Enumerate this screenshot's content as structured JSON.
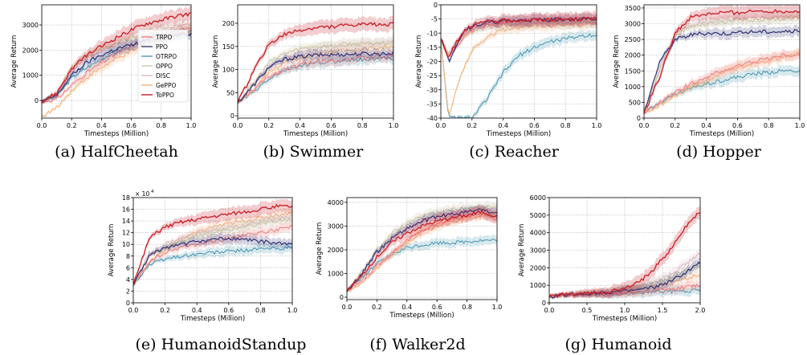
{
  "figure": {
    "captions": [
      "(a) HalfCheetah",
      "(b) Swimmer",
      "(c) Reacher",
      "(d) Hopper",
      "(e) HumanoidStandup",
      "(f) Walker2d",
      "(g) Humanoid"
    ]
  },
  "legend": {
    "entries": [
      {
        "name": "TRPO",
        "color": "#f08080"
      },
      {
        "name": "PPO",
        "color": "#3b3b7a"
      },
      {
        "name": "OTRPO",
        "color": "#4f9ab3"
      },
      {
        "name": "OPPO",
        "color": "#c9c9a6"
      },
      {
        "name": "DISC",
        "color": "#d9b8c4"
      },
      {
        "name": "GePPO",
        "color": "#f2b27c"
      },
      {
        "name": "ToPPO",
        "color": "#c81d25"
      }
    ]
  },
  "chart_data": [
    {
      "type": "line",
      "title": "HalfCheetah",
      "xlabel": "Timesteps (Million)",
      "ylabel": "Average Return",
      "xlim": [
        0,
        1
      ],
      "ylim": [
        -700,
        3800
      ],
      "xticks": [
        "0.0",
        "0.2",
        "0.4",
        "0.6",
        "0.8",
        "1.0"
      ],
      "yticks": [
        0,
        1000,
        2000,
        3000
      ],
      "x": [
        0,
        0.1,
        0.2,
        0.3,
        0.4,
        0.5,
        0.6,
        0.7,
        0.8,
        0.9,
        1.0
      ],
      "series": [
        {
          "name": "TRPO",
          "values": [
            -50,
            50,
            600,
            1100,
            1500,
            1850,
            2150,
            2400,
            2600,
            2750,
            2850
          ]
        },
        {
          "name": "PPO",
          "values": [
            -50,
            200,
            1000,
            1500,
            1800,
            2050,
            2200,
            2400,
            2500,
            2600,
            2650
          ]
        },
        {
          "name": "OTRPO",
          "values": [
            -50,
            150,
            900,
            1300,
            1650,
            1950,
            2150,
            2300,
            2450,
            2600,
            2700
          ]
        },
        {
          "name": "OPPO",
          "values": [
            -50,
            300,
            1300,
            1800,
            2100,
            2300,
            2450,
            2600,
            2750,
            2850,
            2950
          ]
        },
        {
          "name": "DISC",
          "values": [
            -50,
            250,
            1200,
            1700,
            2000,
            2250,
            2450,
            2650,
            2800,
            2950,
            3050
          ]
        },
        {
          "name": "GePPO",
          "values": [
            -650,
            -300,
            400,
            900,
            1300,
            1650,
            1950,
            2200,
            2400,
            2600,
            2750
          ]
        },
        {
          "name": "ToPPO",
          "values": [
            -50,
            300,
            1250,
            1800,
            2150,
            2500,
            2800,
            3050,
            3200,
            3350,
            3450
          ]
        }
      ]
    },
    {
      "type": "line",
      "title": "Swimmer",
      "xlabel": "Timesteps (Million)",
      "ylabel": "Average Return",
      "xlim": [
        0,
        1
      ],
      "ylim": [
        -5,
        240
      ],
      "xticks": [
        "0.0",
        "0.2",
        "0.4",
        "0.6",
        "0.8",
        "1.0"
      ],
      "yticks": [
        0,
        50,
        100,
        150,
        200
      ],
      "x": [
        0,
        0.1,
        0.2,
        0.3,
        0.4,
        0.5,
        0.6,
        0.7,
        0.8,
        0.9,
        1.0
      ],
      "series": [
        {
          "name": "TRPO",
          "values": [
            28,
            55,
            85,
            100,
            110,
            117,
            120,
            123,
            125,
            127,
            128
          ]
        },
        {
          "name": "PPO",
          "values": [
            28,
            65,
            105,
            122,
            128,
            131,
            132,
            133,
            134,
            134,
            135
          ]
        },
        {
          "name": "OTRPO",
          "values": [
            28,
            50,
            80,
            98,
            108,
            113,
            117,
            120,
            122,
            124,
            125
          ]
        },
        {
          "name": "OPPO",
          "values": [
            28,
            70,
            115,
            135,
            145,
            150,
            152,
            155,
            156,
            157,
            158
          ]
        },
        {
          "name": "DISC",
          "values": [
            28,
            65,
            105,
            125,
            138,
            145,
            150,
            153,
            155,
            157,
            160
          ]
        },
        {
          "name": "GePPO",
          "values": [
            28,
            55,
            95,
            115,
            125,
            133,
            138,
            142,
            145,
            147,
            150
          ]
        },
        {
          "name": "ToPPO",
          "values": [
            28,
            95,
            155,
            175,
            185,
            190,
            193,
            195,
            197,
            198,
            198
          ]
        }
      ]
    },
    {
      "type": "line",
      "title": "Reacher",
      "xlabel": "Timesteps (Million)",
      "ylabel": "Average Return",
      "xlim": [
        0,
        1
      ],
      "ylim": [
        -40,
        0
      ],
      "xticks": [
        "0.0",
        "0.2",
        "0.4",
        "0.6",
        "0.8",
        "1.0"
      ],
      "yticks": [
        -40,
        -35,
        -30,
        -25,
        -20,
        -15,
        -10,
        -5,
        0
      ],
      "x": [
        0,
        0.05,
        0.1,
        0.15,
        0.2,
        0.3,
        0.4,
        0.5,
        0.6,
        0.7,
        0.8,
        0.9,
        1.0
      ],
      "series": [
        {
          "name": "TRPO",
          "values": [
            -12,
            -18,
            -15,
            -11,
            -9,
            -7,
            -6.3,
            -5.8,
            -5.5,
            -5.3,
            -5.2,
            -5.1,
            -5.0
          ]
        },
        {
          "name": "PPO",
          "values": [
            -12,
            -20,
            -14,
            -9,
            -7.5,
            -6.3,
            -5.8,
            -5.5,
            -5.3,
            -5.2,
            -5.1,
            -5.0,
            -5.0
          ]
        },
        {
          "name": "OTRPO",
          "values": [
            -12,
            -40,
            -40,
            -40,
            -40,
            -33,
            -24,
            -18,
            -15,
            -13,
            -12,
            -11,
            -10.5
          ]
        },
        {
          "name": "OPPO",
          "values": [
            -12,
            -18,
            -14,
            -11,
            -9.5,
            -8,
            -7.3,
            -7,
            -6.8,
            -6.6,
            -6.5,
            -6.4,
            -6.3
          ]
        },
        {
          "name": "DISC",
          "values": [
            -12,
            -17,
            -13,
            -10,
            -8.5,
            -7.5,
            -7,
            -6.8,
            -6.6,
            -6.5,
            -6.4,
            -6.3,
            -6.2
          ]
        },
        {
          "name": "GePPO",
          "values": [
            -12,
            -40,
            -30,
            -22,
            -16,
            -11,
            -9,
            -8,
            -7.5,
            -7.2,
            -7,
            -6.8,
            -6.7
          ]
        },
        {
          "name": "ToPPO",
          "values": [
            -12,
            -19,
            -13,
            -9,
            -7,
            -6,
            -5.6,
            -5.4,
            -5.3,
            -5.2,
            -5.1,
            -5.0,
            -5.0
          ]
        }
      ]
    },
    {
      "type": "line",
      "title": "Hopper",
      "xlabel": "Timesteps (Million)",
      "ylabel": "Average Return",
      "xlim": [
        0,
        1
      ],
      "ylim": [
        0,
        3600
      ],
      "xticks": [
        "0.0",
        "0.2",
        "0.4",
        "0.6",
        "0.8",
        "1.0"
      ],
      "yticks": [
        0,
        500,
        1000,
        1500,
        2000,
        2500,
        3000,
        3500
      ],
      "x": [
        0,
        0.1,
        0.2,
        0.3,
        0.4,
        0.5,
        0.6,
        0.7,
        0.8,
        0.9,
        1.0
      ],
      "series": [
        {
          "name": "TRPO",
          "values": [
            150,
            500,
            800,
            1100,
            1300,
            1500,
            1650,
            1800,
            1900,
            2000,
            2000
          ]
        },
        {
          "name": "PPO",
          "values": [
            150,
            1800,
            2500,
            2650,
            2700,
            2700,
            2700,
            2750,
            2750,
            2750,
            2750
          ]
        },
        {
          "name": "OTRPO",
          "values": [
            150,
            500,
            750,
            950,
            1100,
            1200,
            1300,
            1400,
            1450,
            1500,
            1500
          ]
        },
        {
          "name": "OPPO",
          "values": [
            150,
            1500,
            2600,
            2900,
            3000,
            3050,
            3100,
            3100,
            3150,
            3150,
            3200
          ]
        },
        {
          "name": "DISC",
          "values": [
            150,
            1600,
            2700,
            2950,
            3050,
            3100,
            3150,
            3150,
            3200,
            3200,
            3250
          ]
        },
        {
          "name": "GePPO",
          "values": [
            150,
            400,
            700,
            1000,
            1200,
            1400,
            1600,
            1750,
            1850,
            1950,
            2050
          ]
        },
        {
          "name": "ToPPO",
          "values": [
            150,
            1300,
            2700,
            3200,
            3300,
            3350,
            3350,
            3400,
            3400,
            3400,
            3400
          ]
        }
      ]
    },
    {
      "type": "line",
      "title": "HumanoidStandup",
      "xlabel": "Timesteps (Million)",
      "ylabel": "Average Return",
      "axis_multiplier": "× 10^4",
      "xlim": [
        0,
        1
      ],
      "ylim": [
        0,
        18
      ],
      "xticks": [
        "0.0",
        "0.2",
        "0.4",
        "0.6",
        "0.8",
        "1.0"
      ],
      "yticks": [
        0,
        2,
        4,
        6,
        8,
        10,
        12,
        14,
        16,
        18
      ],
      "x": [
        0,
        0.1,
        0.2,
        0.3,
        0.4,
        0.5,
        0.6,
        0.7,
        0.8,
        0.9,
        1.0
      ],
      "series": [
        {
          "name": "TRPO",
          "values": [
            3,
            7,
            8.5,
            9.5,
            10,
            10.5,
            11,
            11.5,
            12,
            12.5,
            13
          ]
        },
        {
          "name": "PPO",
          "values": [
            3,
            8,
            9.5,
            10,
            10.5,
            10.8,
            11,
            10.8,
            10.5,
            10.2,
            10
          ]
        },
        {
          "name": "OTRPO",
          "values": [
            3,
            6.5,
            7.5,
            8,
            8.3,
            8.6,
            8.8,
            9,
            9.2,
            9.3,
            9.4
          ]
        },
        {
          "name": "OPPO",
          "values": [
            3,
            8,
            9.5,
            10.5,
            11.5,
            12,
            12.5,
            13,
            13.5,
            14,
            14.3
          ]
        },
        {
          "name": "DISC",
          "values": [
            3,
            8.5,
            10,
            11,
            11.8,
            12.3,
            12.8,
            13.3,
            13.8,
            14.3,
            14.8
          ]
        },
        {
          "name": "GePPO",
          "values": [
            3,
            7,
            9,
            11,
            12,
            13,
            13.5,
            14,
            14.5,
            15,
            15.5
          ]
        },
        {
          "name": "ToPPO",
          "values": [
            3,
            11,
            13,
            13.8,
            14.3,
            14.8,
            15.2,
            15.6,
            16,
            16.5,
            16.5
          ]
        }
      ]
    },
    {
      "type": "line",
      "title": "Walker2d",
      "xlabel": "Timesteps (Million)",
      "ylabel": "Average Return",
      "xlim": [
        0,
        1
      ],
      "ylim": [
        -100,
        4200
      ],
      "xticks": [
        "0.0",
        "0.2",
        "0.4",
        "0.6",
        "0.8",
        "1.0"
      ],
      "yticks": [
        0,
        1000,
        2000,
        3000,
        4000
      ],
      "x": [
        0,
        0.1,
        0.2,
        0.3,
        0.4,
        0.5,
        0.6,
        0.7,
        0.8,
        0.9,
        1.0
      ],
      "series": [
        {
          "name": "TRPO",
          "values": [
            250,
            700,
            1300,
            1900,
            2400,
            2800,
            3100,
            3300,
            3400,
            3500,
            3300
          ]
        },
        {
          "name": "PPO",
          "values": [
            250,
            1000,
            1900,
            2500,
            2900,
            3200,
            3400,
            3500,
            3600,
            3700,
            3500
          ]
        },
        {
          "name": "OTRPO",
          "values": [
            250,
            800,
            1400,
            1800,
            2100,
            2200,
            2300,
            2300,
            2350,
            2400,
            2400
          ]
        },
        {
          "name": "OPPO",
          "values": [
            250,
            1100,
            2000,
            2700,
            3100,
            3400,
            3600,
            3700,
            3750,
            3800,
            3800
          ]
        },
        {
          "name": "DISC",
          "values": [
            250,
            1000,
            1900,
            2600,
            3000,
            3300,
            3500,
            3600,
            3650,
            3700,
            3700
          ]
        },
        {
          "name": "GePPO",
          "values": [
            250,
            600,
            1200,
            1800,
            2300,
            2700,
            3000,
            3200,
            3350,
            3450,
            3500
          ]
        },
        {
          "name": "ToPPO",
          "values": [
            250,
            900,
            1700,
            2300,
            2700,
            3000,
            3200,
            3350,
            3450,
            3600,
            3400
          ]
        }
      ]
    },
    {
      "type": "line",
      "title": "Humanoid",
      "xlabel": "Timesteps (Million)",
      "ylabel": "Average Return",
      "xlim": [
        0,
        2
      ],
      "ylim": [
        0,
        6000
      ],
      "xticks": [
        "0.0",
        "0.5",
        "1.0",
        "1.5",
        "2.0"
      ],
      "yticks": [
        0,
        1000,
        2000,
        3000,
        4000,
        5000,
        6000
      ],
      "x": [
        0,
        0.2,
        0.4,
        0.6,
        0.8,
        1.0,
        1.2,
        1.4,
        1.6,
        1.8,
        2.0
      ],
      "series": [
        {
          "name": "TRPO",
          "values": [
            350,
            430,
            480,
            520,
            550,
            580,
            620,
            680,
            760,
            880,
            1000
          ]
        },
        {
          "name": "PPO",
          "values": [
            350,
            450,
            500,
            550,
            600,
            650,
            750,
            900,
            1200,
            1700,
            2300
          ]
        },
        {
          "name": "OTRPO",
          "values": [
            350,
            420,
            460,
            490,
            520,
            550,
            580,
            610,
            640,
            670,
            700
          ]
        },
        {
          "name": "OPPO",
          "values": [
            350,
            450,
            500,
            550,
            600,
            700,
            850,
            1100,
            1400,
            1800,
            2100
          ]
        },
        {
          "name": "DISC",
          "values": [
            350,
            450,
            500,
            560,
            620,
            720,
            900,
            1200,
            1600,
            2200,
            2800
          ]
        },
        {
          "name": "GePPO",
          "values": [
            350,
            440,
            490,
            540,
            590,
            650,
            750,
            950,
            1150,
            1400,
            1600
          ]
        },
        {
          "name": "ToPPO",
          "values": [
            350,
            460,
            520,
            580,
            650,
            800,
            1200,
            2000,
            3000,
            4300,
            5200
          ]
        }
      ]
    }
  ]
}
